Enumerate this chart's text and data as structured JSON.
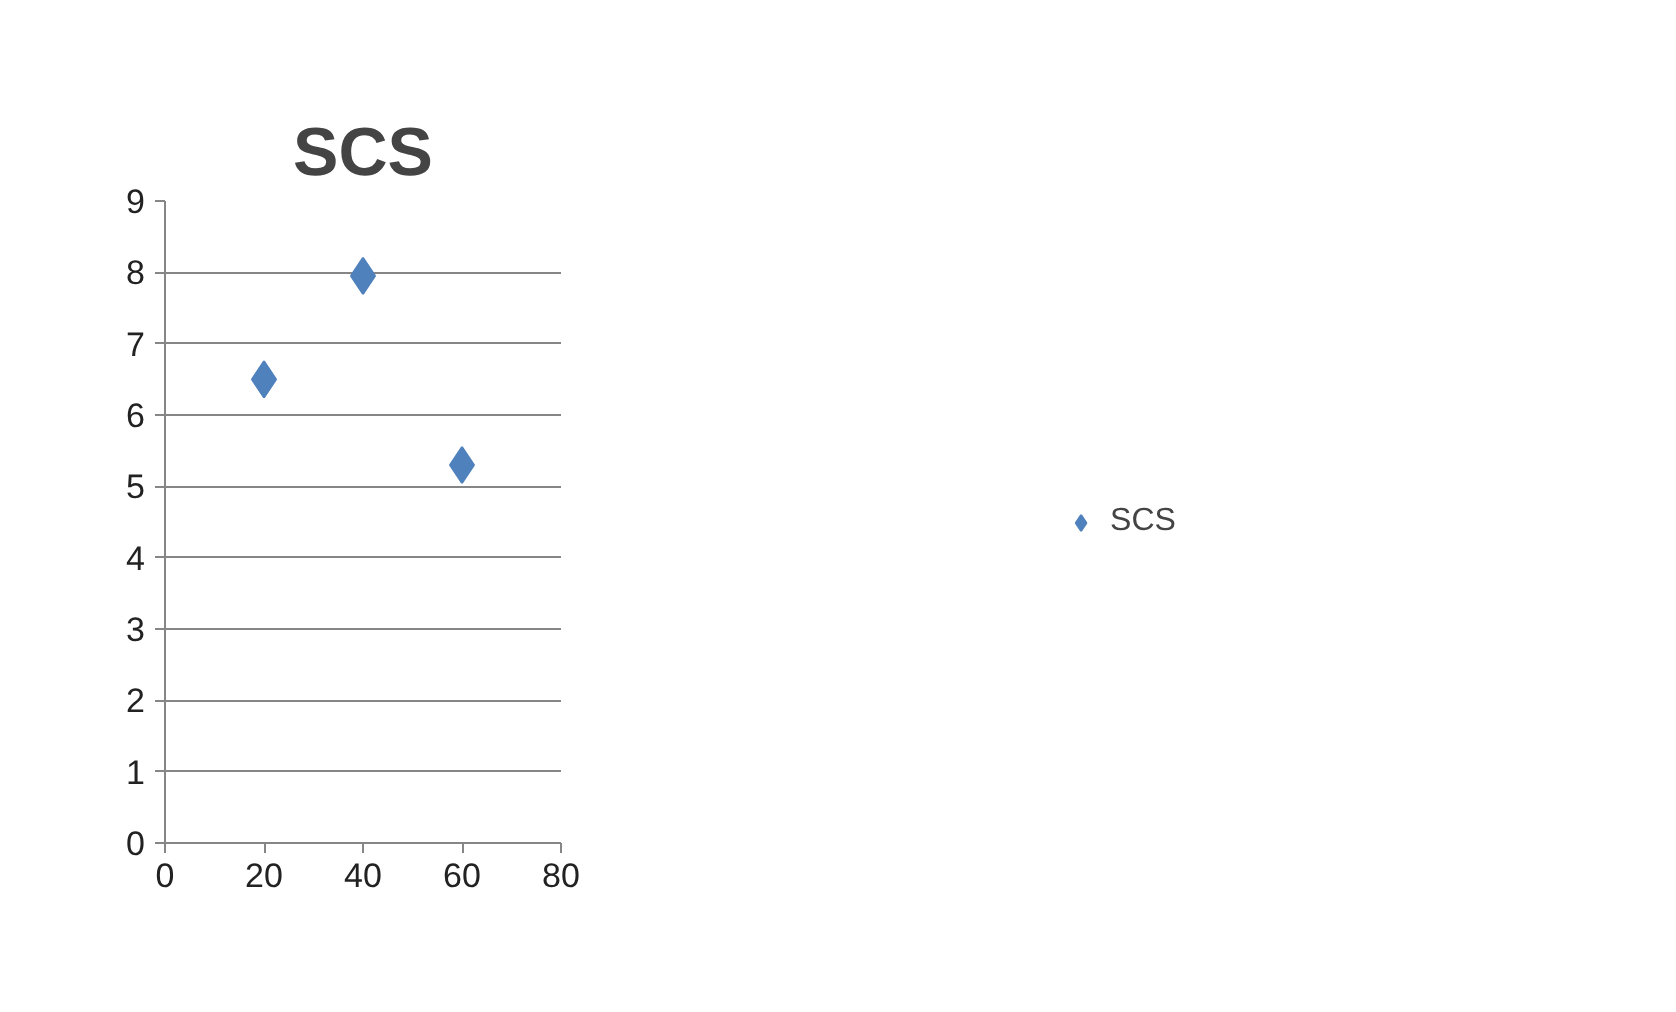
{
  "chart_data": {
    "type": "scatter",
    "title": "SCS",
    "x": [
      20,
      40,
      60
    ],
    "series": [
      {
        "name": "SCS",
        "color": "#4f81bd",
        "values": [
          6.5,
          7.95,
          5.3
        ]
      }
    ],
    "xlim": [
      0,
      80
    ],
    "xticks": [
      0,
      20,
      40,
      60,
      80
    ],
    "ylim": [
      0,
      9
    ],
    "yticks": [
      0,
      1,
      2,
      3,
      4,
      5,
      6,
      7,
      8,
      9
    ],
    "grid": "y",
    "legend": "right",
    "marker": "diamond"
  }
}
